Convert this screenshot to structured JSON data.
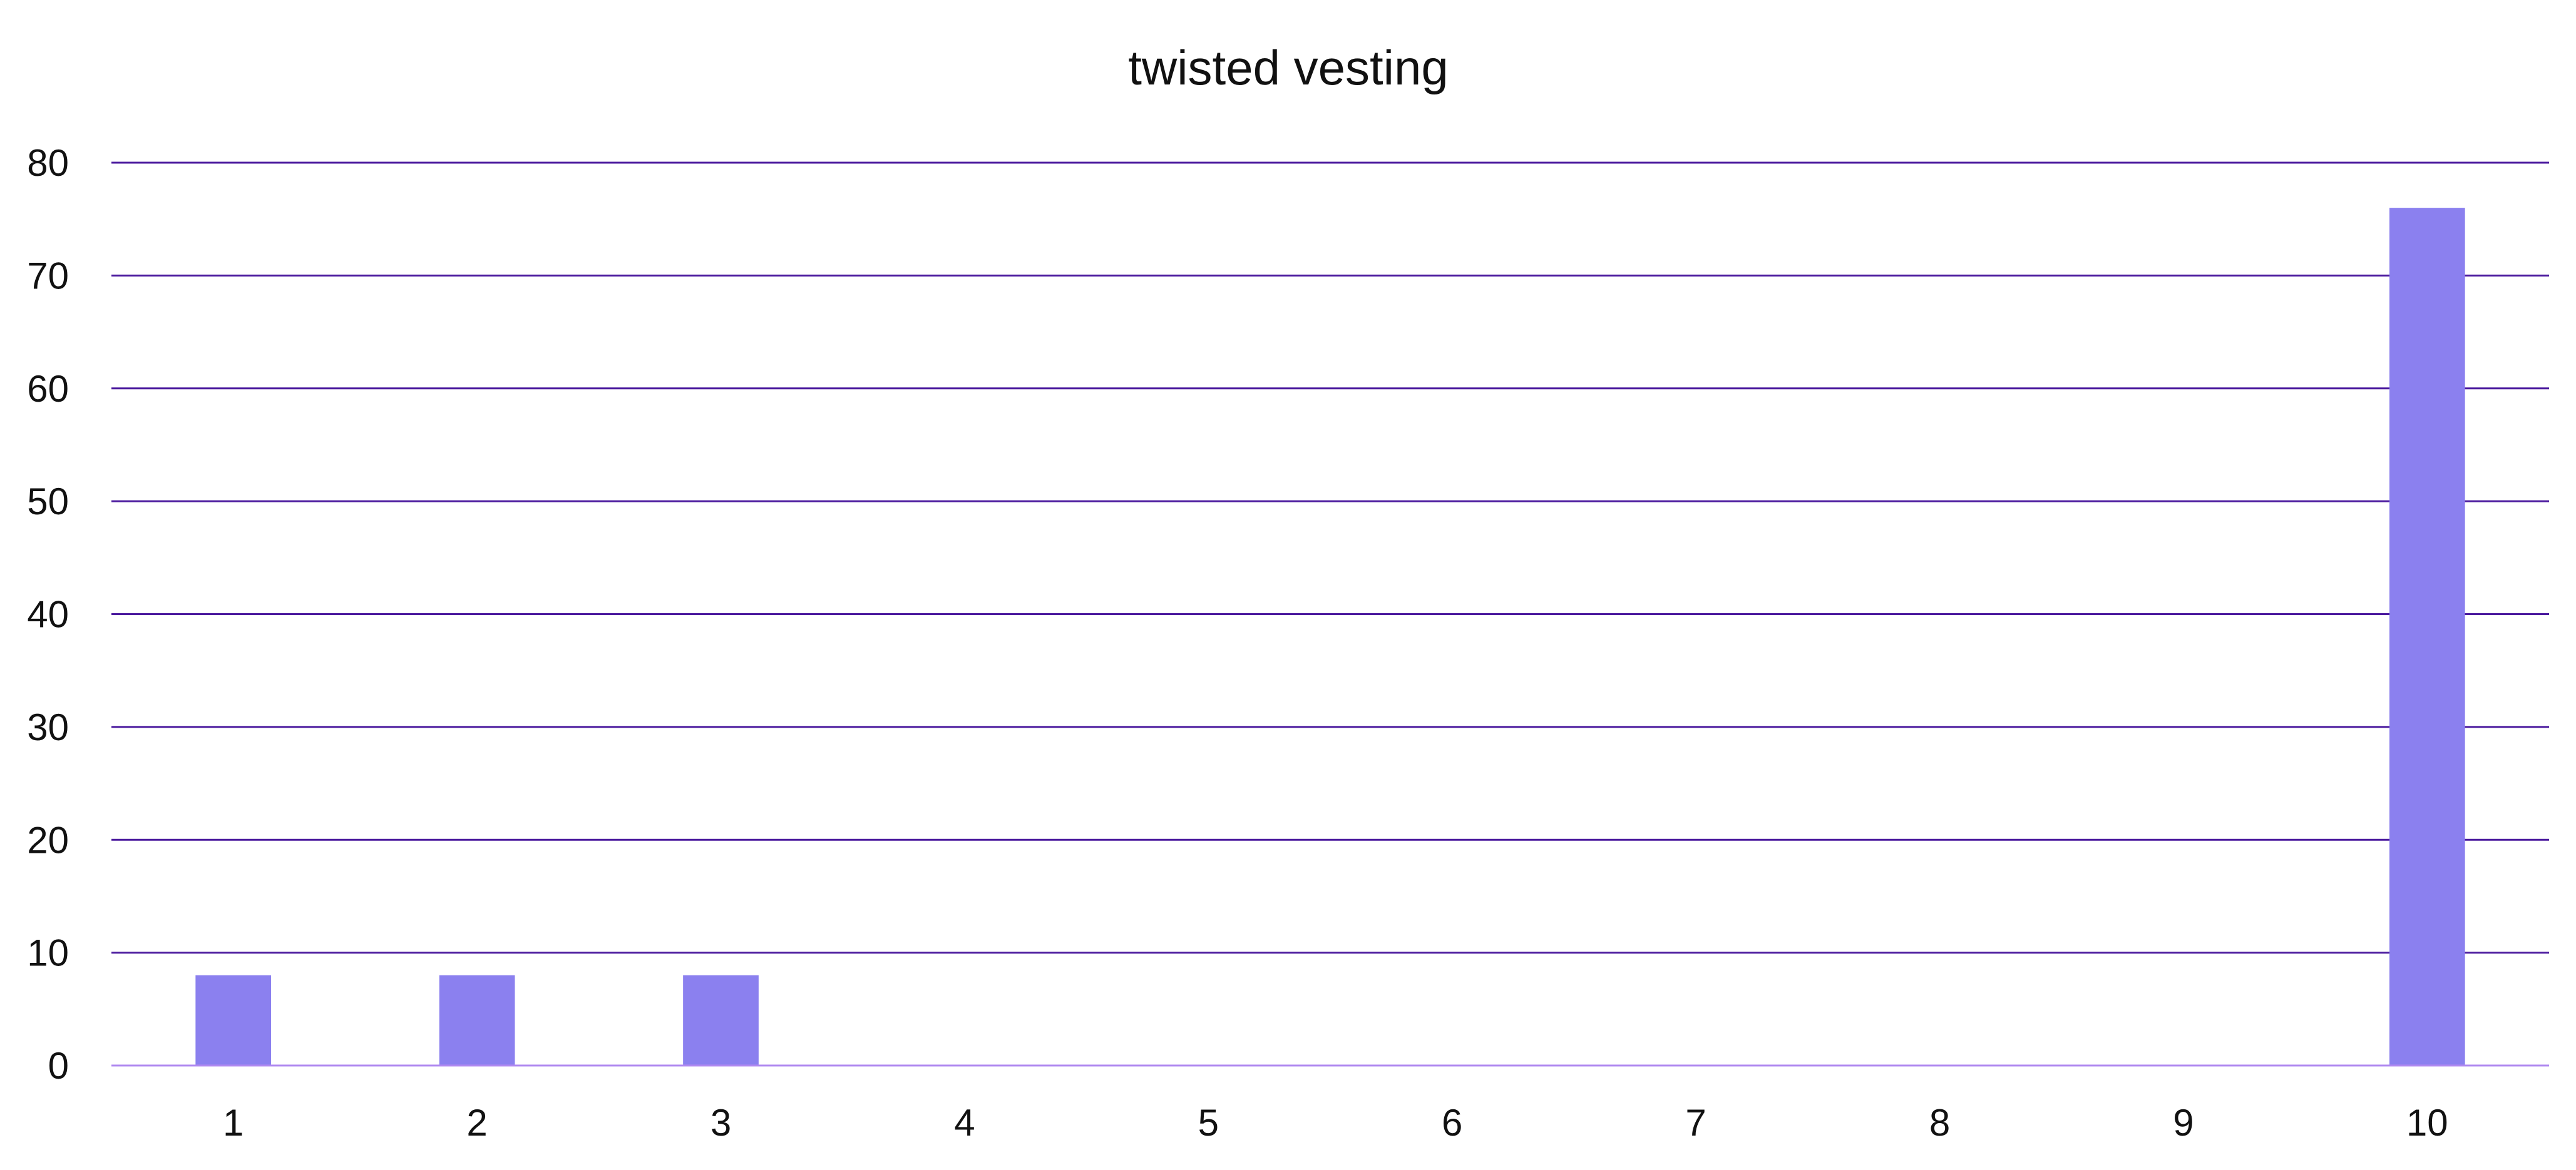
{
  "chart_data": {
    "type": "bar",
    "title": "twisted vesting",
    "xlabel": "",
    "ylabel": "",
    "categories": [
      "1",
      "2",
      "3",
      "4",
      "5",
      "6",
      "7",
      "8",
      "9",
      "10"
    ],
    "series": [
      {
        "values": [
          8,
          8,
          8,
          0,
          0,
          0,
          0,
          0,
          0,
          76
        ]
      }
    ],
    "ylim": [
      0,
      80
    ],
    "yticks": [
      0,
      10,
      20,
      30,
      40,
      50,
      60,
      70,
      80
    ],
    "grid": true,
    "legend": "none",
    "colors": {
      "bar": "#8b80ef",
      "grid": "#4b1a9e",
      "baseline": "#b08af0",
      "text": "#111111"
    }
  }
}
